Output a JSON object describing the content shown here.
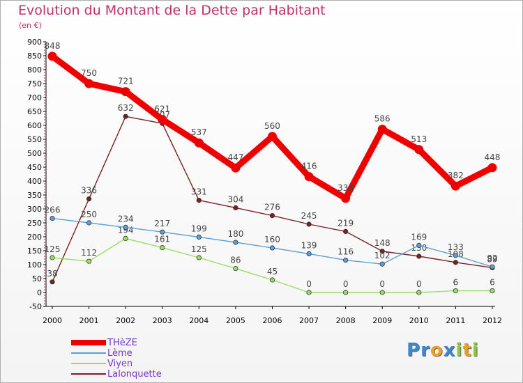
{
  "title": "Evolution du Montant de la Dette par Habitant",
  "unit": "(en €)",
  "logo": {
    "text": "Proxiti",
    "letters": [
      {
        "ch": "P",
        "color": "#3a88d0"
      },
      {
        "ch": "r",
        "color": "#3a88d0"
      },
      {
        "ch": "o",
        "color": "#f0a020"
      },
      {
        "ch": "x",
        "color": "#3a88d0"
      },
      {
        "ch": "i",
        "color": "#8cc83c"
      },
      {
        "ch": "t",
        "color": "#f0a020"
      },
      {
        "ch": "i",
        "color": "#8cc83c"
      }
    ]
  },
  "chart_data": {
    "type": "line",
    "x": [
      "2000",
      "2001",
      "2002",
      "2003",
      "2004",
      "2005",
      "2006",
      "2007",
      "2008",
      "2009",
      "2010",
      "2011",
      "2012"
    ],
    "ylim": [
      -50,
      900
    ],
    "yticks": [
      "-50",
      "0",
      "50",
      "100",
      "150",
      "200",
      "250",
      "300",
      "350",
      "400",
      "450",
      "500",
      "550",
      "600",
      "650",
      "700",
      "750",
      "800",
      "850",
      "900"
    ],
    "grid": false,
    "legend": "bottom-left",
    "series": [
      {
        "name": "Lalonquette",
        "color": "#7a2020",
        "values": [
          38,
          336,
          632,
          607,
          331,
          304,
          276,
          245,
          219,
          148,
          130,
          108,
          89
        ],
        "labels": [
          "38",
          "336",
          "632",
          "607",
          "331",
          "304",
          "276",
          "245",
          "219",
          "148",
          "130",
          "108",
          "89"
        ]
      },
      {
        "name": "Viyen",
        "color": "#99dd66",
        "values": [
          125,
          112,
          194,
          161,
          125,
          86,
          45,
          0,
          0,
          0,
          0,
          6,
          6
        ],
        "labels": [
          "125",
          "112",
          "194",
          "161",
          "125",
          "86",
          "45",
          "0",
          "0",
          "0",
          "0",
          "6",
          "6"
        ]
      },
      {
        "name": "Lème",
        "color": "#5f9fd6",
        "values": [
          266,
          250,
          234,
          217,
          199,
          180,
          160,
          139,
          116,
          102,
          169,
          133,
          92
        ],
        "labels": [
          "266",
          "250",
          "234",
          "217",
          "199",
          "180",
          "160",
          "139",
          "116",
          "102",
          "169",
          "133",
          "92"
        ]
      },
      {
        "name": "THèZE",
        "color": "#ee0000",
        "values": [
          848,
          750,
          721,
          621,
          537,
          447,
          560,
          416,
          338,
          586,
          513,
          382,
          448
        ],
        "labels": [
          "848",
          "750",
          "721",
          "621",
          "537",
          "447",
          "560",
          "416",
          "338",
          "586",
          "513",
          "382",
          "448"
        ]
      }
    ],
    "legend_order": [
      "THèZE",
      "Lème",
      "Viyen",
      "Lalonquette"
    ]
  }
}
